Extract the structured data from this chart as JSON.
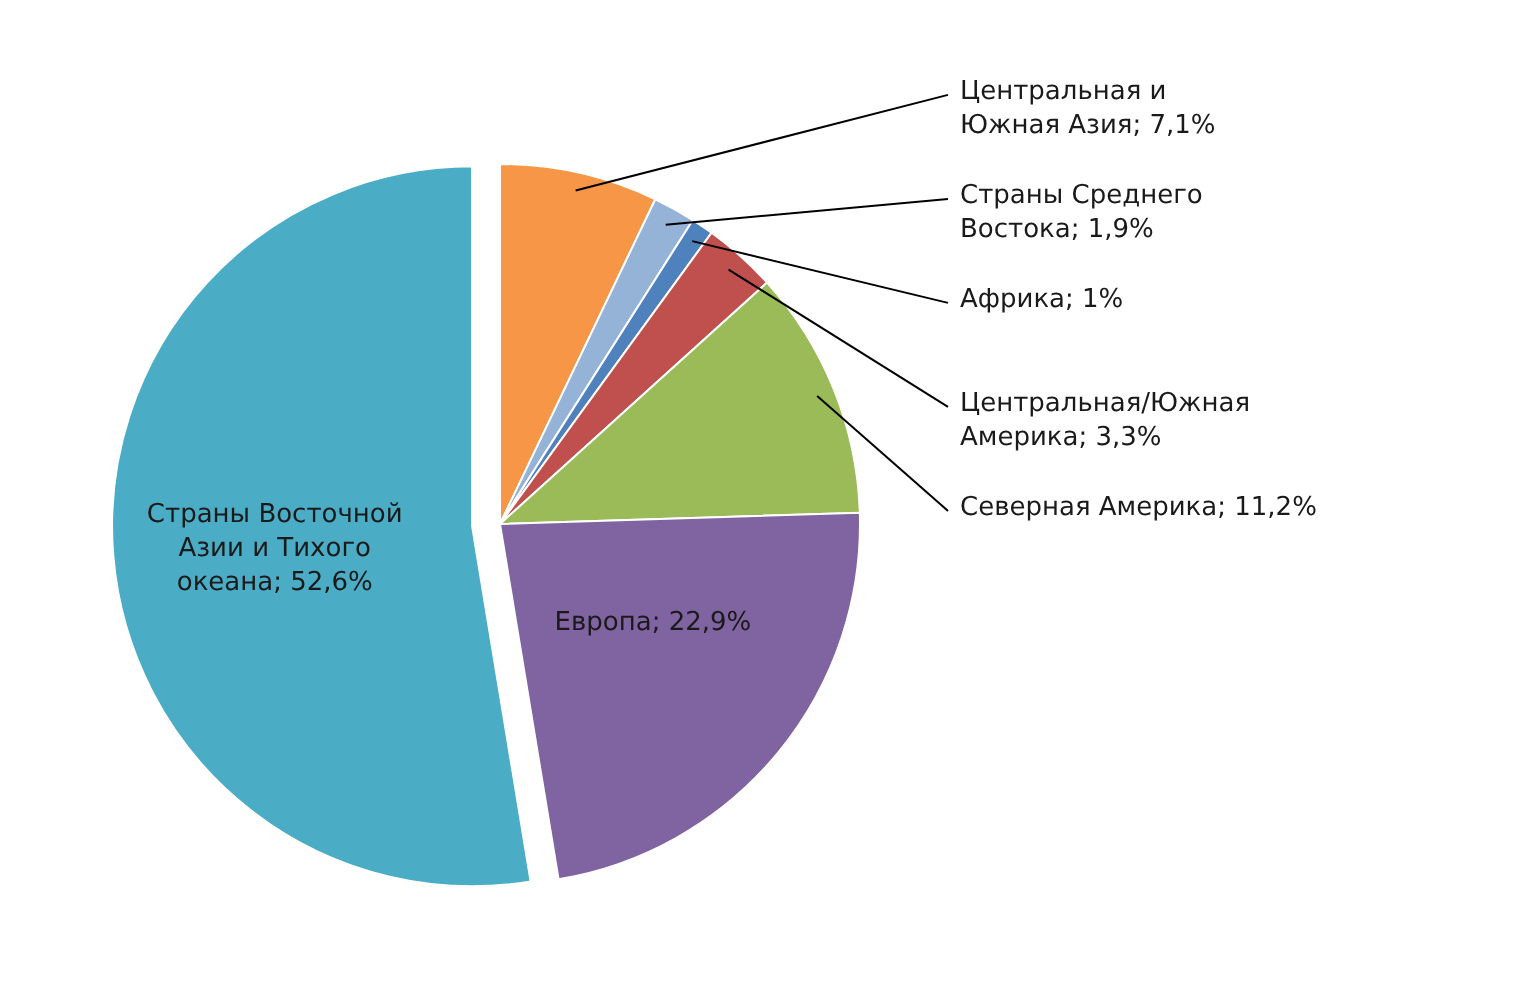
{
  "chart_data": {
    "type": "pie",
    "categories": [
      "Центральная и Южная Азия",
      "Страны Среднего Востока",
      "Африка",
      "Центральная/Южная Америка",
      "Северная Америка",
      "Европа",
      "Страны Восточной Азии и Тихого океана"
    ],
    "values": [
      7.1,
      1.9,
      1,
      3.3,
      11.2,
      22.9,
      52.6
    ],
    "value_labels": [
      "7,1%",
      "1,9%",
      "1%",
      "3,3%",
      "11,2%",
      "22,9%",
      "52,6%"
    ],
    "colors": [
      "#f79646",
      "#95b3d7",
      "#4f81bd",
      "#c0504d",
      "#9bbb59",
      "#8064a2",
      "#4bacc6"
    ]
  }
}
